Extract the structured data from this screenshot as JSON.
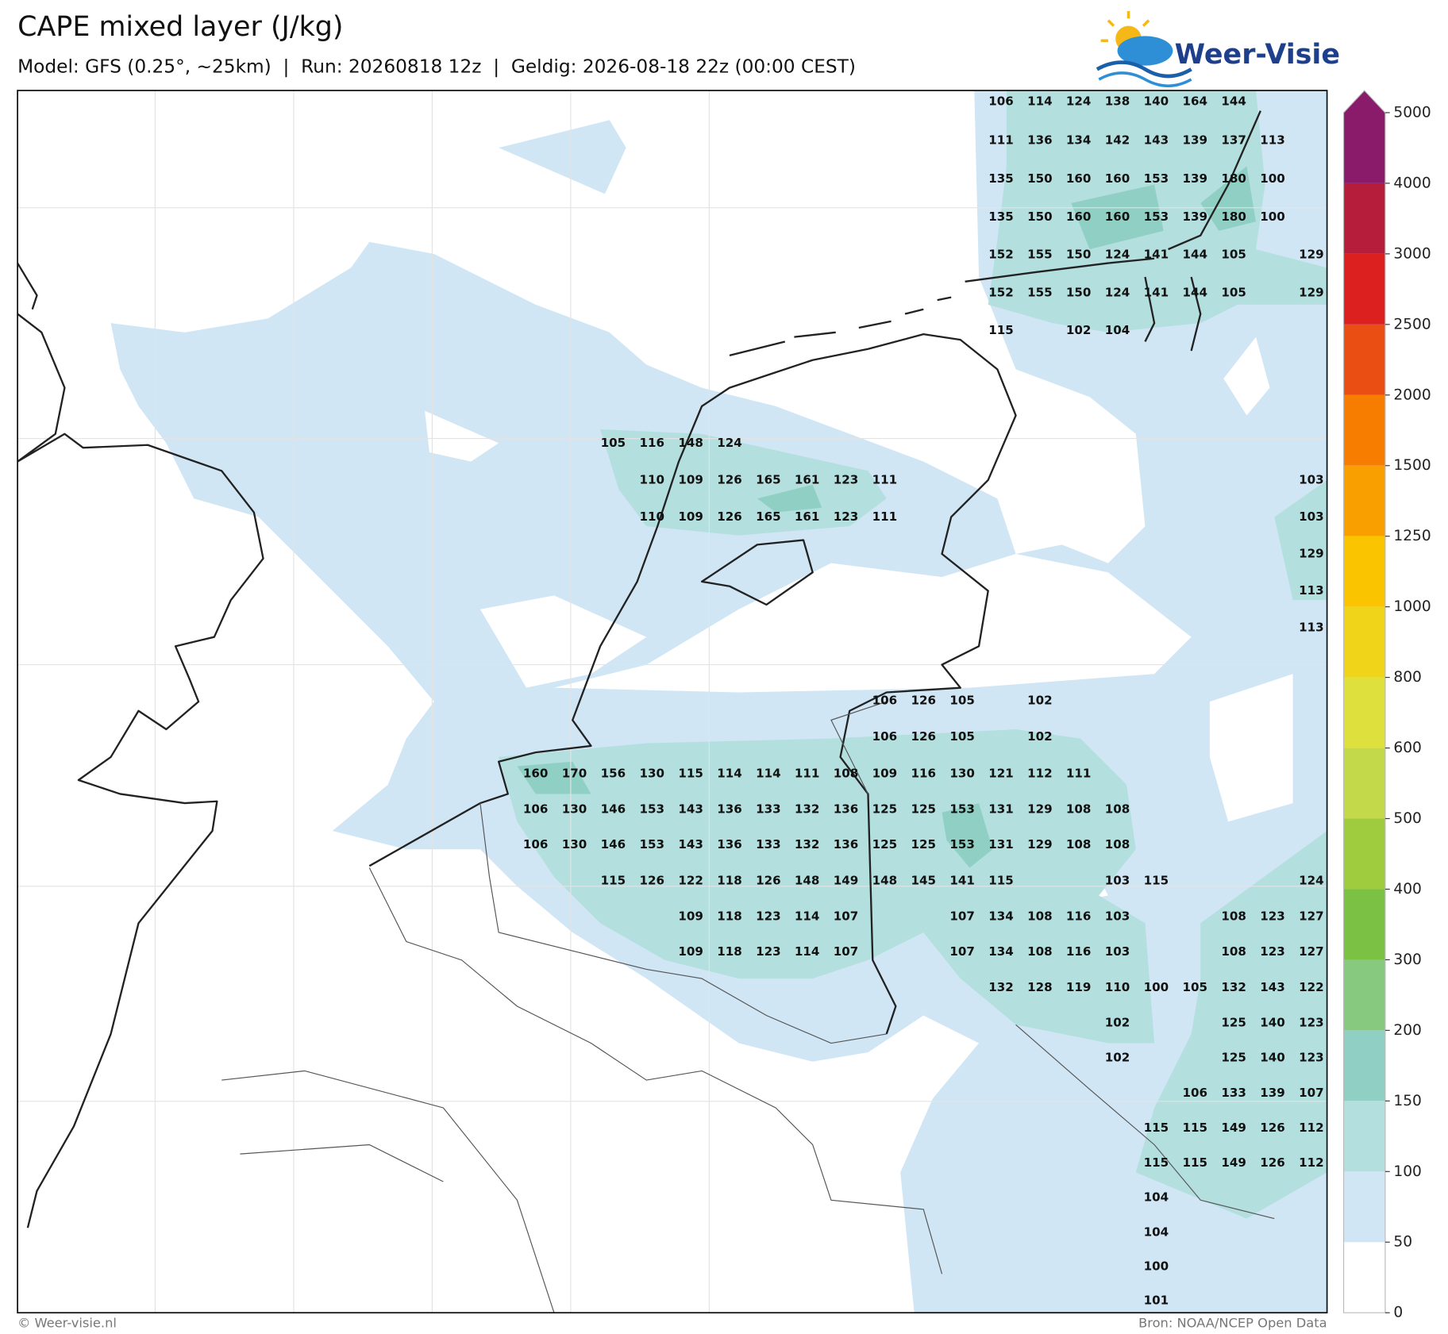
{
  "header": {
    "title": "CAPE mixed layer (J/kg)",
    "subtitle": "Model: GFS (0.25°, ~25km)  |  Run: 20260818 12z  |  Geldig: 2026-08-18 22z (00:00 CEST)",
    "logo": "Weer-Visie"
  },
  "map": {
    "rows": [
      [
        null,
        null,
        null,
        null,
        null,
        null,
        null,
        null,
        null,
        null,
        null,
        null,
        106,
        114,
        124,
        138,
        140,
        164,
        144,
        null,
        null
      ],
      [
        null,
        null,
        null,
        null,
        null,
        null,
        null,
        null,
        null,
        null,
        null,
        null,
        111,
        136,
        134,
        142,
        143,
        139,
        137,
        113,
        null
      ],
      [
        null,
        null,
        null,
        null,
        null,
        null,
        null,
        null,
        null,
        null,
        null,
        null,
        135,
        150,
        160,
        160,
        153,
        139,
        180,
        100,
        null
      ],
      [
        null,
        null,
        null,
        null,
        null,
        null,
        null,
        null,
        null,
        null,
        null,
        null,
        135,
        150,
        160,
        160,
        153,
        139,
        180,
        100,
        null
      ],
      [
        null,
        null,
        null,
        null,
        null,
        null,
        null,
        null,
        null,
        null,
        null,
        null,
        152,
        155,
        150,
        124,
        141,
        144,
        105,
        null,
        129
      ],
      [
        null,
        null,
        null,
        null,
        null,
        null,
        null,
        null,
        null,
        null,
        null,
        null,
        152,
        155,
        150,
        124,
        141,
        144,
        105,
        null,
        129
      ],
      [
        null,
        null,
        null,
        null,
        null,
        null,
        null,
        null,
        null,
        null,
        null,
        null,
        115,
        null,
        102,
        104,
        null,
        null,
        null,
        null,
        null
      ],
      [
        null,
        null,
        105,
        116,
        148,
        124,
        null,
        null,
        null,
        null,
        null,
        null,
        null,
        null,
        null,
        null,
        null,
        null,
        null,
        null,
        null
      ],
      [
        null,
        null,
        null,
        110,
        109,
        126,
        165,
        161,
        123,
        111,
        null,
        null,
        null,
        null,
        null,
        null,
        null,
        null,
        null,
        null,
        103
      ],
      [
        null,
        null,
        null,
        110,
        109,
        126,
        165,
        161,
        123,
        111,
        null,
        null,
        null,
        null,
        null,
        null,
        null,
        null,
        null,
        null,
        103
      ],
      [
        null,
        null,
        null,
        null,
        null,
        null,
        null,
        null,
        null,
        null,
        null,
        null,
        null,
        null,
        null,
        null,
        null,
        null,
        null,
        null,
        129
      ],
      [
        null,
        null,
        null,
        null,
        null,
        null,
        null,
        null,
        null,
        null,
        null,
        null,
        null,
        null,
        null,
        null,
        null,
        null,
        null,
        null,
        113
      ],
      [
        null,
        null,
        null,
        null,
        null,
        null,
        null,
        null,
        null,
        null,
        null,
        null,
        null,
        null,
        null,
        null,
        null,
        null,
        null,
        null,
        113
      ],
      [
        null,
        null,
        null,
        null,
        null,
        null,
        null,
        null,
        null,
        106,
        126,
        105,
        null,
        102,
        null,
        null,
        null,
        null,
        null,
        null,
        null
      ],
      [
        null,
        null,
        null,
        null,
        null,
        null,
        null,
        null,
        null,
        106,
        126,
        105,
        null,
        102,
        null,
        null,
        null,
        null,
        null,
        null,
        null
      ],
      [
        160,
        170,
        156,
        130,
        115,
        114,
        114,
        111,
        108,
        109,
        116,
        130,
        121,
        112,
        111,
        null,
        null,
        null,
        null,
        null,
        null
      ],
      [
        106,
        130,
        146,
        153,
        143,
        136,
        133,
        132,
        136,
        125,
        125,
        153,
        131,
        129,
        108,
        108,
        null,
        null,
        null,
        null,
        null
      ],
      [
        106,
        130,
        146,
        153,
        143,
        136,
        133,
        132,
        136,
        125,
        125,
        153,
        131,
        129,
        108,
        108,
        null,
        null,
        null,
        null,
        null
      ],
      [
        null,
        null,
        115,
        126,
        122,
        118,
        126,
        148,
        149,
        148,
        145,
        141,
        115,
        null,
        null,
        103,
        115,
        null,
        null,
        null,
        124
      ],
      [
        null,
        null,
        null,
        null,
        109,
        118,
        123,
        114,
        107,
        null,
        null,
        107,
        134,
        108,
        116,
        103,
        null,
        null,
        108,
        123,
        127
      ],
      [
        null,
        null,
        null,
        null,
        109,
        118,
        123,
        114,
        107,
        null,
        null,
        107,
        134,
        108,
        116,
        103,
        null,
        null,
        108,
        123,
        127
      ],
      [
        null,
        null,
        null,
        null,
        null,
        null,
        null,
        null,
        null,
        null,
        null,
        null,
        132,
        128,
        119,
        110,
        100,
        105,
        132,
        143,
        122
      ],
      [
        null,
        null,
        null,
        null,
        null,
        null,
        null,
        null,
        null,
        null,
        null,
        null,
        null,
        null,
        null,
        102,
        null,
        null,
        125,
        140,
        123
      ],
      [
        null,
        null,
        null,
        null,
        null,
        null,
        null,
        null,
        null,
        null,
        null,
        null,
        null,
        null,
        null,
        102,
        null,
        null,
        125,
        140,
        123
      ],
      [
        null,
        null,
        null,
        null,
        null,
        null,
        null,
        null,
        null,
        null,
        null,
        null,
        null,
        null,
        null,
        null,
        null,
        106,
        133,
        139,
        107
      ],
      [
        null,
        null,
        null,
        null,
        null,
        null,
        null,
        null,
        null,
        null,
        null,
        null,
        null,
        null,
        null,
        null,
        115,
        115,
        149,
        126,
        112
      ],
      [
        null,
        null,
        null,
        null,
        null,
        null,
        null,
        null,
        null,
        null,
        null,
        null,
        null,
        null,
        null,
        null,
        115,
        115,
        149,
        126,
        112
      ],
      [
        null,
        null,
        null,
        null,
        null,
        null,
        null,
        null,
        null,
        null,
        null,
        null,
        null,
        null,
        null,
        null,
        104,
        null,
        null,
        null,
        null
      ],
      [
        null,
        null,
        null,
        null,
        null,
        null,
        null,
        null,
        null,
        null,
        null,
        null,
        null,
        null,
        null,
        null,
        104,
        null,
        null,
        null,
        null
      ],
      [
        null,
        null,
        null,
        null,
        null,
        null,
        null,
        null,
        null,
        null,
        null,
        null,
        null,
        null,
        null,
        null,
        100,
        null,
        null,
        null,
        null
      ],
      [
        null,
        null,
        null,
        null,
        null,
        null,
        null,
        null,
        null,
        null,
        null,
        null,
        null,
        null,
        null,
        null,
        101,
        null,
        null,
        null,
        null
      ]
    ]
  },
  "colorbar": {
    "ticks": [
      0,
      50,
      100,
      150,
      200,
      300,
      400,
      500,
      600,
      800,
      1000,
      1250,
      1500,
      2000,
      2500,
      3000,
      4000,
      5000
    ],
    "colors": [
      "#ffffff",
      "#d0e6f5",
      "#b4dfdf",
      "#90d0c4",
      "#86c97f",
      "#7bc143",
      "#9fcc3e",
      "#c4d94a",
      "#dde03d",
      "#f0d41a",
      "#fbc400",
      "#fa9f00",
      "#f67d00",
      "#ea4e12",
      "#dc1f1f",
      "#b51d3a",
      "#8a1a6a"
    ],
    "extend_color": "#8a1a6a"
  },
  "footer": {
    "left": "© Weer-visie.nl",
    "right": "Bron: NOAA/NCEP Open Data"
  }
}
